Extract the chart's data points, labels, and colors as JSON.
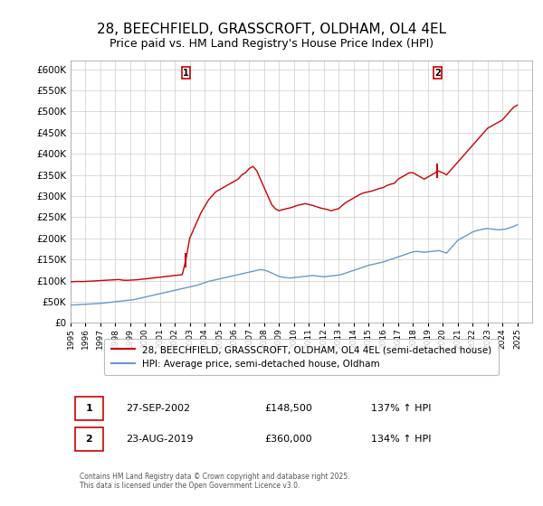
{
  "title": "28, BEECHFIELD, GRASSCROFT, OLDHAM, OL4 4EL",
  "subtitle": "Price paid vs. HM Land Registry's House Price Index (HPI)",
  "title_fontsize": 11,
  "subtitle_fontsize": 9,
  "background_color": "#ffffff",
  "plot_bg_color": "#ffffff",
  "grid_color": "#cccccc",
  "red_color": "#cc0000",
  "blue_color": "#6699cc",
  "ylim": [
    0,
    620000
  ],
  "yticks": [
    0,
    50000,
    100000,
    150000,
    200000,
    250000,
    300000,
    350000,
    400000,
    450000,
    500000,
    550000,
    600000
  ],
  "ytick_labels": [
    "£0",
    "£50K",
    "£100K",
    "£150K",
    "£200K",
    "£250K",
    "£300K",
    "£350K",
    "£400K",
    "£450K",
    "£500K",
    "£550K",
    "£600K"
  ],
  "xlim_start": 1995,
  "xlim_end": 2026,
  "xticks": [
    1995,
    1996,
    1997,
    1998,
    1999,
    2000,
    2001,
    2002,
    2003,
    2004,
    2005,
    2006,
    2007,
    2008,
    2009,
    2010,
    2011,
    2012,
    2013,
    2014,
    2015,
    2016,
    2017,
    2018,
    2019,
    2020,
    2021,
    2022,
    2023,
    2024,
    2025
  ],
  "legend1_label": "28, BEECHFIELD, GRASSCROFT, OLDHAM, OL4 4EL (semi-detached house)",
  "legend2_label": "HPI: Average price, semi-detached house, Oldham",
  "marker1_date": 2002.74,
  "marker1_price": 148500,
  "marker1_label": "1",
  "marker2_date": 2019.64,
  "marker2_price": 360000,
  "marker2_label": "2",
  "annotation1": "1    27-SEP-2002         £148,500         137% ↑ HPI",
  "annotation2": "2    23-AUG-2019         £360,000         134% ↑ HPI",
  "footer": "Contains HM Land Registry data © Crown copyright and database right 2025.\nThis data is licensed under the Open Government Licence v3.0.",
  "red_x": [
    1995.0,
    1995.25,
    1995.5,
    1995.75,
    1996.0,
    1996.25,
    1996.5,
    1996.75,
    1997.0,
    1997.25,
    1997.5,
    1997.75,
    1998.0,
    1998.25,
    1998.5,
    1998.75,
    1999.0,
    1999.25,
    1999.5,
    1999.75,
    2000.0,
    2000.25,
    2000.5,
    2000.75,
    2001.0,
    2001.25,
    2001.5,
    2001.75,
    2002.0,
    2002.25,
    2002.5,
    2002.74,
    2003.0,
    2003.25,
    2003.5,
    2003.75,
    2004.0,
    2004.25,
    2004.5,
    2004.75,
    2005.0,
    2005.25,
    2005.5,
    2005.75,
    2006.0,
    2006.25,
    2006.5,
    2006.75,
    2007.0,
    2007.25,
    2007.5,
    2007.75,
    2008.0,
    2008.25,
    2008.5,
    2008.75,
    2009.0,
    2009.25,
    2009.5,
    2009.75,
    2010.0,
    2010.25,
    2010.5,
    2010.75,
    2011.0,
    2011.25,
    2011.5,
    2011.75,
    2012.0,
    2012.25,
    2012.5,
    2012.75,
    2013.0,
    2013.25,
    2013.5,
    2013.75,
    2014.0,
    2014.25,
    2014.5,
    2014.75,
    2015.0,
    2015.25,
    2015.5,
    2015.75,
    2016.0,
    2016.25,
    2016.5,
    2016.75,
    2017.0,
    2017.25,
    2017.5,
    2017.75,
    2018.0,
    2018.25,
    2018.5,
    2018.75,
    2019.0,
    2019.25,
    2019.5,
    2019.64,
    2020.0,
    2020.25,
    2020.5,
    2020.75,
    2021.0,
    2021.25,
    2021.5,
    2021.75,
    2022.0,
    2022.25,
    2022.5,
    2022.75,
    2023.0,
    2023.25,
    2023.5,
    2023.75,
    2024.0,
    2024.25,
    2024.5,
    2024.75,
    2025.0
  ],
  "red_y": [
    97000,
    97500,
    98000,
    97500,
    98000,
    98500,
    99000,
    99500,
    100000,
    100500,
    101000,
    101500,
    102000,
    102500,
    101000,
    100500,
    101000,
    101500,
    102000,
    103000,
    104000,
    105000,
    106000,
    107000,
    108000,
    109000,
    110000,
    111000,
    112000,
    113000,
    114000,
    148500,
    200000,
    220000,
    240000,
    260000,
    275000,
    290000,
    300000,
    310000,
    315000,
    320000,
    325000,
    330000,
    335000,
    340000,
    350000,
    355000,
    365000,
    370000,
    360000,
    340000,
    320000,
    300000,
    280000,
    270000,
    265000,
    268000,
    270000,
    272000,
    275000,
    278000,
    280000,
    282000,
    280000,
    278000,
    275000,
    272000,
    270000,
    268000,
    265000,
    268000,
    270000,
    278000,
    285000,
    290000,
    295000,
    300000,
    305000,
    308000,
    310000,
    312000,
    315000,
    318000,
    320000,
    325000,
    328000,
    330000,
    340000,
    345000,
    350000,
    355000,
    355000,
    350000,
    345000,
    340000,
    345000,
    350000,
    355000,
    360000,
    355000,
    350000,
    360000,
    370000,
    380000,
    390000,
    400000,
    410000,
    420000,
    430000,
    440000,
    450000,
    460000,
    465000,
    470000,
    475000,
    480000,
    490000,
    500000,
    510000,
    515000
  ],
  "blue_x": [
    1995.0,
    1995.25,
    1995.5,
    1995.75,
    1996.0,
    1996.25,
    1996.5,
    1996.75,
    1997.0,
    1997.25,
    1997.5,
    1997.75,
    1998.0,
    1998.25,
    1998.5,
    1998.75,
    1999.0,
    1999.25,
    1999.5,
    1999.75,
    2000.0,
    2000.25,
    2000.5,
    2000.75,
    2001.0,
    2001.25,
    2001.5,
    2001.75,
    2002.0,
    2002.25,
    2002.5,
    2002.75,
    2003.0,
    2003.25,
    2003.5,
    2003.75,
    2004.0,
    2004.25,
    2004.5,
    2004.75,
    2005.0,
    2005.25,
    2005.5,
    2005.75,
    2006.0,
    2006.25,
    2006.5,
    2006.75,
    2007.0,
    2007.25,
    2007.5,
    2007.75,
    2008.0,
    2008.25,
    2008.5,
    2008.75,
    2009.0,
    2009.25,
    2009.5,
    2009.75,
    2010.0,
    2010.25,
    2010.5,
    2010.75,
    2011.0,
    2011.25,
    2011.5,
    2011.75,
    2012.0,
    2012.25,
    2012.5,
    2012.75,
    2013.0,
    2013.25,
    2013.5,
    2013.75,
    2014.0,
    2014.25,
    2014.5,
    2014.75,
    2015.0,
    2015.25,
    2015.5,
    2015.75,
    2016.0,
    2016.25,
    2016.5,
    2016.75,
    2017.0,
    2017.25,
    2017.5,
    2017.75,
    2018.0,
    2018.25,
    2018.5,
    2018.75,
    2019.0,
    2019.25,
    2019.5,
    2019.75,
    2020.0,
    2020.25,
    2020.5,
    2020.75,
    2021.0,
    2021.25,
    2021.5,
    2021.75,
    2022.0,
    2022.25,
    2022.5,
    2022.75,
    2023.0,
    2023.25,
    2023.5,
    2023.75,
    2024.0,
    2024.25,
    2024.5,
    2024.75,
    2025.0
  ],
  "blue_y": [
    42000,
    42500,
    43000,
    43500,
    44000,
    44500,
    45000,
    45500,
    46000,
    47000,
    48000,
    49000,
    50000,
    51000,
    52000,
    53000,
    54000,
    55000,
    57000,
    59000,
    61000,
    63000,
    65000,
    67000,
    69000,
    71000,
    73000,
    75000,
    77000,
    79000,
    81000,
    83000,
    85000,
    87000,
    89000,
    92000,
    95000,
    98000,
    100000,
    102000,
    104000,
    106000,
    108000,
    110000,
    112000,
    114000,
    116000,
    118000,
    120000,
    122000,
    124000,
    126000,
    125000,
    122000,
    118000,
    114000,
    110000,
    108000,
    107000,
    106000,
    107000,
    108000,
    109000,
    110000,
    111000,
    112000,
    111000,
    110000,
    109000,
    110000,
    111000,
    112000,
    113000,
    115000,
    118000,
    121000,
    124000,
    127000,
    130000,
    133000,
    136000,
    138000,
    140000,
    142000,
    144000,
    147000,
    150000,
    153000,
    156000,
    159000,
    162000,
    165000,
    168000,
    169000,
    168000,
    167000,
    168000,
    169000,
    170000,
    171000,
    168000,
    165000,
    175000,
    185000,
    195000,
    200000,
    205000,
    210000,
    215000,
    218000,
    220000,
    222000,
    223000,
    222000,
    221000,
    220000,
    221000,
    222000,
    225000,
    228000,
    232000
  ]
}
